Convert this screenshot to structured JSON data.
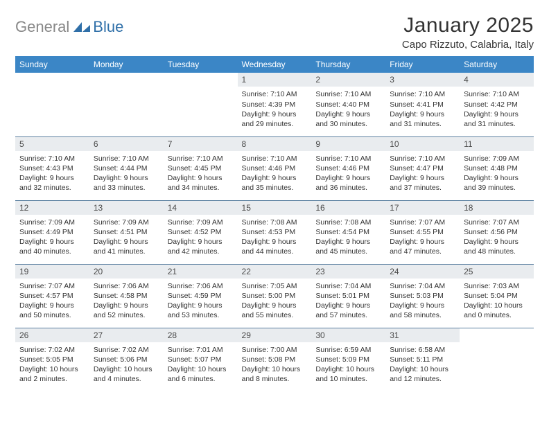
{
  "logo": {
    "text1": "General",
    "text2": "Blue"
  },
  "title": "January 2025",
  "location": "Capo Rizzuto, Calabria, Italy",
  "theme": {
    "header_bg": "#3b86c6",
    "header_text": "#ffffff",
    "daynum_bg": "#e9ecef",
    "row_border": "#5a7fa0",
    "page_bg": "#ffffff",
    "logo_gray": "#888888",
    "logo_blue": "#2f6fa8"
  },
  "weekdays": [
    "Sunday",
    "Monday",
    "Tuesday",
    "Wednesday",
    "Thursday",
    "Friday",
    "Saturday"
  ],
  "weeks": [
    [
      null,
      null,
      null,
      {
        "n": "1",
        "sr": "7:10 AM",
        "ss": "4:39 PM",
        "dl": "9 hours and 29 minutes."
      },
      {
        "n": "2",
        "sr": "7:10 AM",
        "ss": "4:40 PM",
        "dl": "9 hours and 30 minutes."
      },
      {
        "n": "3",
        "sr": "7:10 AM",
        "ss": "4:41 PM",
        "dl": "9 hours and 31 minutes."
      },
      {
        "n": "4",
        "sr": "7:10 AM",
        "ss": "4:42 PM",
        "dl": "9 hours and 31 minutes."
      }
    ],
    [
      {
        "n": "5",
        "sr": "7:10 AM",
        "ss": "4:43 PM",
        "dl": "9 hours and 32 minutes."
      },
      {
        "n": "6",
        "sr": "7:10 AM",
        "ss": "4:44 PM",
        "dl": "9 hours and 33 minutes."
      },
      {
        "n": "7",
        "sr": "7:10 AM",
        "ss": "4:45 PM",
        "dl": "9 hours and 34 minutes."
      },
      {
        "n": "8",
        "sr": "7:10 AM",
        "ss": "4:46 PM",
        "dl": "9 hours and 35 minutes."
      },
      {
        "n": "9",
        "sr": "7:10 AM",
        "ss": "4:46 PM",
        "dl": "9 hours and 36 minutes."
      },
      {
        "n": "10",
        "sr": "7:10 AM",
        "ss": "4:47 PM",
        "dl": "9 hours and 37 minutes."
      },
      {
        "n": "11",
        "sr": "7:09 AM",
        "ss": "4:48 PM",
        "dl": "9 hours and 39 minutes."
      }
    ],
    [
      {
        "n": "12",
        "sr": "7:09 AM",
        "ss": "4:49 PM",
        "dl": "9 hours and 40 minutes."
      },
      {
        "n": "13",
        "sr": "7:09 AM",
        "ss": "4:51 PM",
        "dl": "9 hours and 41 minutes."
      },
      {
        "n": "14",
        "sr": "7:09 AM",
        "ss": "4:52 PM",
        "dl": "9 hours and 42 minutes."
      },
      {
        "n": "15",
        "sr": "7:08 AM",
        "ss": "4:53 PM",
        "dl": "9 hours and 44 minutes."
      },
      {
        "n": "16",
        "sr": "7:08 AM",
        "ss": "4:54 PM",
        "dl": "9 hours and 45 minutes."
      },
      {
        "n": "17",
        "sr": "7:07 AM",
        "ss": "4:55 PM",
        "dl": "9 hours and 47 minutes."
      },
      {
        "n": "18",
        "sr": "7:07 AM",
        "ss": "4:56 PM",
        "dl": "9 hours and 48 minutes."
      }
    ],
    [
      {
        "n": "19",
        "sr": "7:07 AM",
        "ss": "4:57 PM",
        "dl": "9 hours and 50 minutes."
      },
      {
        "n": "20",
        "sr": "7:06 AM",
        "ss": "4:58 PM",
        "dl": "9 hours and 52 minutes."
      },
      {
        "n": "21",
        "sr": "7:06 AM",
        "ss": "4:59 PM",
        "dl": "9 hours and 53 minutes."
      },
      {
        "n": "22",
        "sr": "7:05 AM",
        "ss": "5:00 PM",
        "dl": "9 hours and 55 minutes."
      },
      {
        "n": "23",
        "sr": "7:04 AM",
        "ss": "5:01 PM",
        "dl": "9 hours and 57 minutes."
      },
      {
        "n": "24",
        "sr": "7:04 AM",
        "ss": "5:03 PM",
        "dl": "9 hours and 58 minutes."
      },
      {
        "n": "25",
        "sr": "7:03 AM",
        "ss": "5:04 PM",
        "dl": "10 hours and 0 minutes."
      }
    ],
    [
      {
        "n": "26",
        "sr": "7:02 AM",
        "ss": "5:05 PM",
        "dl": "10 hours and 2 minutes."
      },
      {
        "n": "27",
        "sr": "7:02 AM",
        "ss": "5:06 PM",
        "dl": "10 hours and 4 minutes."
      },
      {
        "n": "28",
        "sr": "7:01 AM",
        "ss": "5:07 PM",
        "dl": "10 hours and 6 minutes."
      },
      {
        "n": "29",
        "sr": "7:00 AM",
        "ss": "5:08 PM",
        "dl": "10 hours and 8 minutes."
      },
      {
        "n": "30",
        "sr": "6:59 AM",
        "ss": "5:09 PM",
        "dl": "10 hours and 10 minutes."
      },
      {
        "n": "31",
        "sr": "6:58 AM",
        "ss": "5:11 PM",
        "dl": "10 hours and 12 minutes."
      },
      null
    ]
  ],
  "labels": {
    "sunrise": "Sunrise:",
    "sunset": "Sunset:",
    "daylight": "Daylight:"
  }
}
